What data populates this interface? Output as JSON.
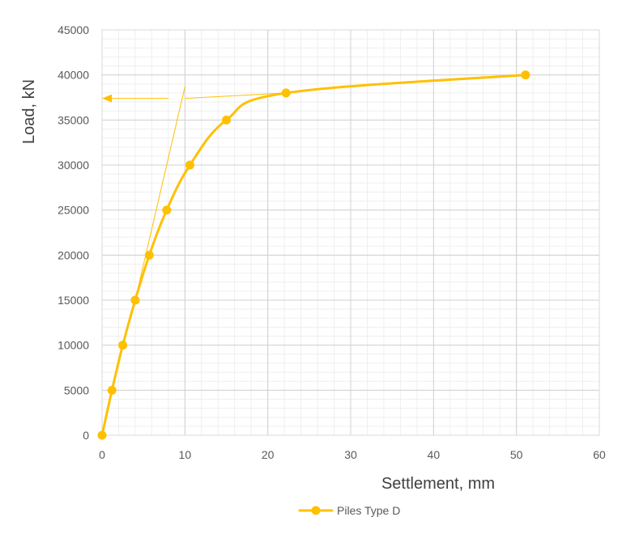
{
  "chart_data": {
    "type": "scatter",
    "title": "",
    "xlabel": "Settlement, mm",
    "ylabel": "Load, kN",
    "xlim": [
      0,
      60
    ],
    "ylim": [
      0,
      45000
    ],
    "x_ticks": [
      0,
      10,
      20,
      30,
      40,
      50,
      60
    ],
    "y_ticks": [
      0,
      5000,
      10000,
      15000,
      20000,
      25000,
      30000,
      35000,
      40000,
      45000
    ],
    "grid": "major and minor",
    "legend_position": "bottom",
    "series": [
      {
        "name": "Piles Type D",
        "color": "#FFC000",
        "smooth": true,
        "marker": "circle",
        "x": [
          0,
          1.2,
          2.5,
          4.0,
          5.7,
          7.8,
          10.6,
          15.0,
          22.2,
          51.1
        ],
        "y": [
          0,
          5000,
          10000,
          15000,
          20000,
          25000,
          30000,
          35000,
          38000,
          40000
        ]
      }
    ],
    "annotations": {
      "color": "#FFC000",
      "tangent_lines": [
        {
          "x": [
            4.0,
            10.0
          ],
          "y": [
            15000,
            38700
          ]
        },
        {
          "x": [
            10.0,
            22.2
          ],
          "y": [
            37400,
            38000
          ]
        }
      ],
      "arrow": {
        "from": [
          8.0,
          37400
        ],
        "to": [
          0.0,
          37400
        ]
      }
    }
  }
}
